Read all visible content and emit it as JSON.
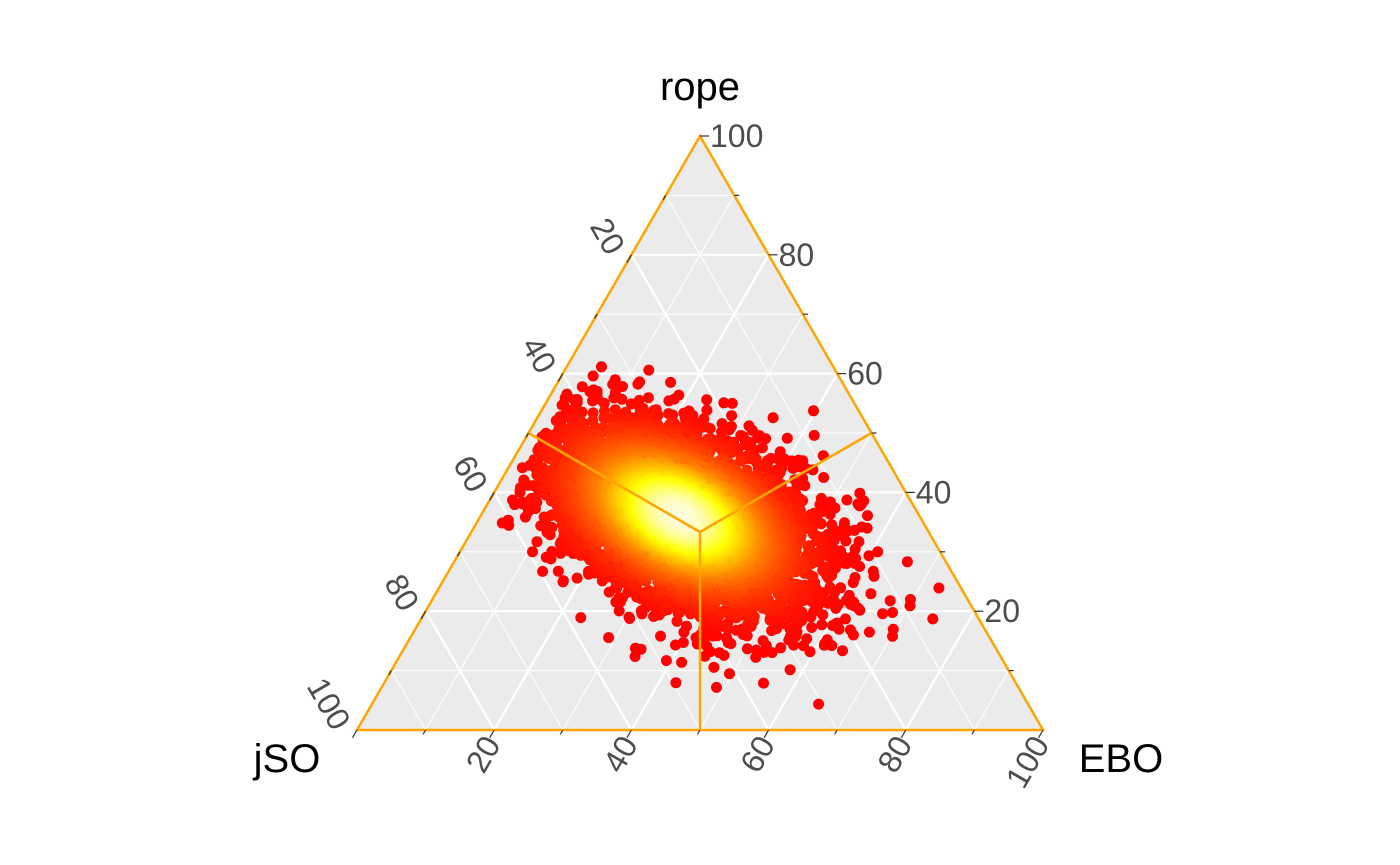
{
  "chart_data": {
    "type": "scatter",
    "subtype": "ternary",
    "title": "",
    "axes": {
      "top": {
        "label": "rope"
      },
      "left": {
        "label": "jSO"
      },
      "right": {
        "label": "EBO"
      }
    },
    "ticks": {
      "top_axis_right_edge": [
        "20",
        "40",
        "60",
        "80",
        "100"
      ],
      "left_axis_left_edge": [
        "20",
        "40",
        "60",
        "80",
        "100"
      ],
      "right_axis_bottom_edge": [
        "20",
        "40",
        "60",
        "80",
        "100"
      ]
    },
    "range": [
      0,
      100
    ],
    "grid": true,
    "panel_color": "#ebebeb",
    "border_color": "#ffa500",
    "point_colors": {
      "low_density": "#ff0000",
      "mid_density": "#ff8c00",
      "high_density": "#ffff00",
      "peak_density": "#fffcd9"
    },
    "centroid": {
      "jSO": 33.3,
      "EBO": 33.3,
      "rope": 33.3
    },
    "density_center": {
      "jSO": 35,
      "EBO": 29,
      "rope": 36
    },
    "n_points": 5000,
    "overlay": "centroid region boundaries (lines from centroid to edge midpoints)"
  }
}
